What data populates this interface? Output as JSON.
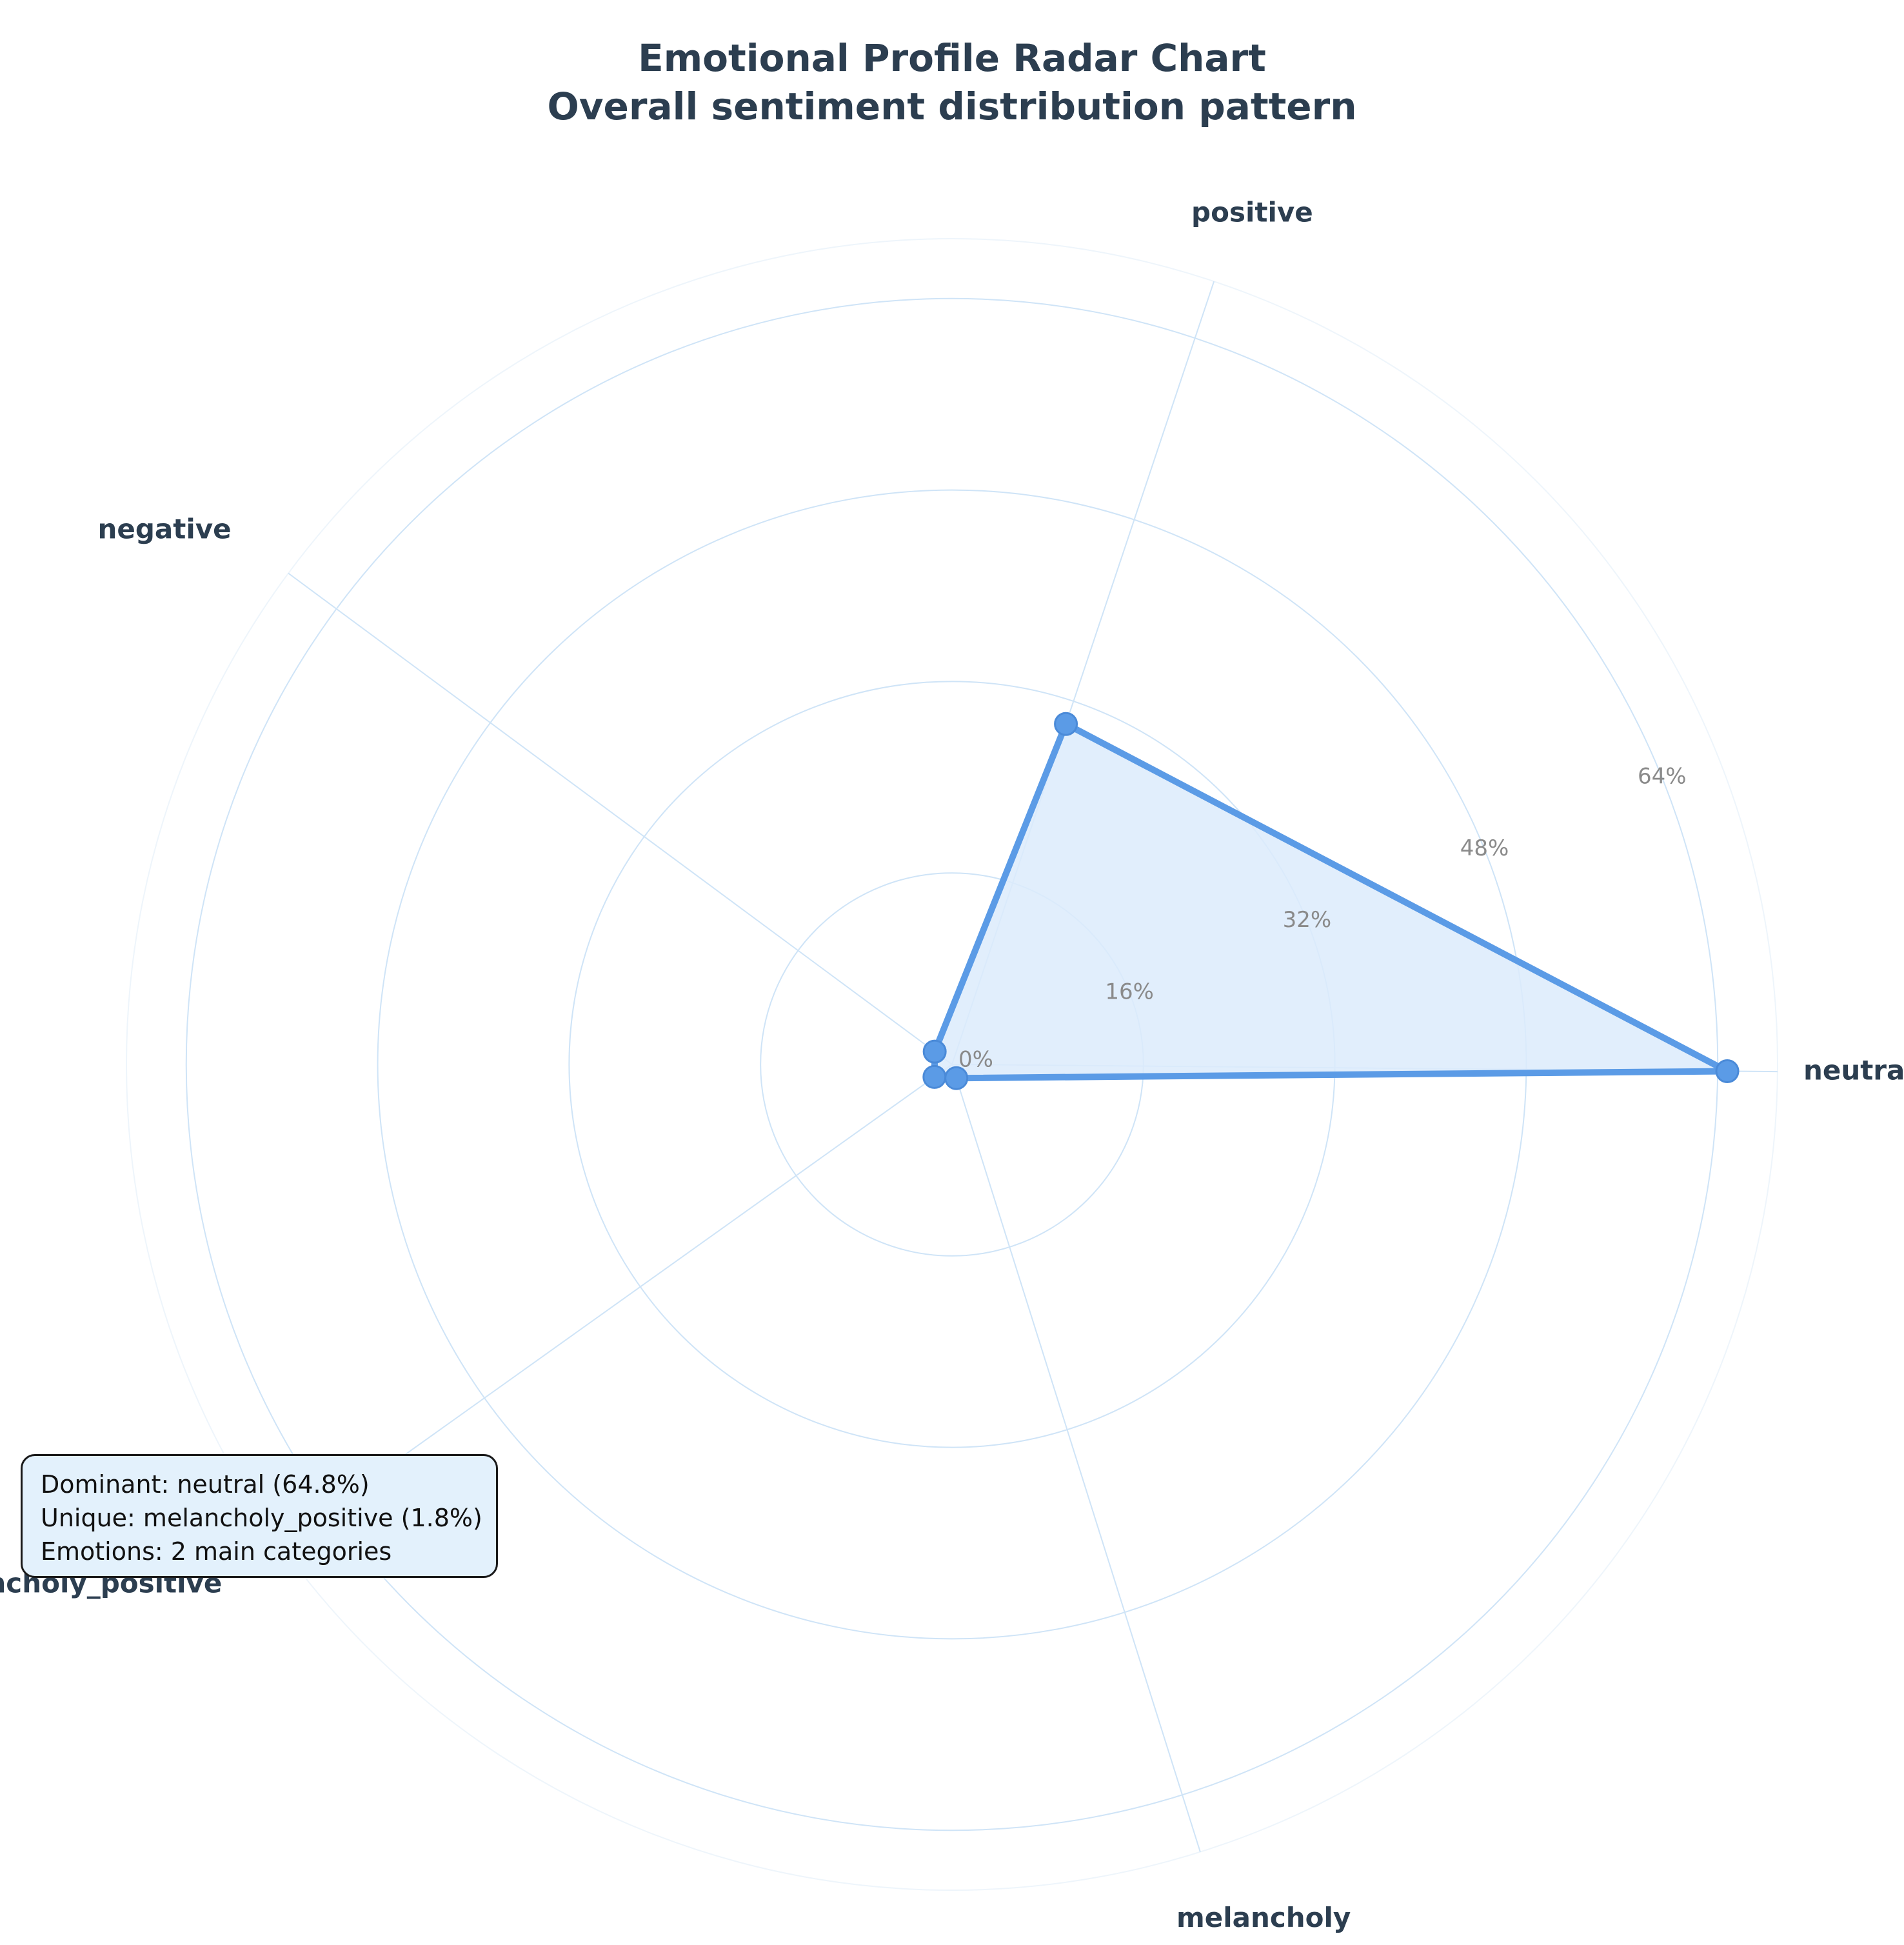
{
  "chart_data": {
    "type": "radar",
    "title": "Emotional Profile Radar Chart",
    "subtitle": "Overall sentiment distribution pattern",
    "categories": [
      "neutral",
      "positive",
      "negative",
      "melancholy_positive",
      "melancholy"
    ],
    "values": [
      64.8,
      30.0,
      1.8,
      1.8,
      1.2
    ],
    "value_unit": "%",
    "radial_ticks": [
      "0%",
      "16%",
      "32%",
      "48%",
      "64%"
    ],
    "radial_tick_values": [
      0,
      16,
      32,
      48,
      64
    ],
    "rmax": 69,
    "grid": true,
    "colors": {
      "series_line": "#5b9be6",
      "series_fill": "#dcebfb",
      "grid": "#cfe4f7",
      "labels": "#2c3e50"
    }
  },
  "info_box": {
    "lines": [
      "Dominant: neutral (64.8%)",
      "Unique: melancholy_positive (1.8%)",
      "Emotions: 2 main categories"
    ]
  }
}
